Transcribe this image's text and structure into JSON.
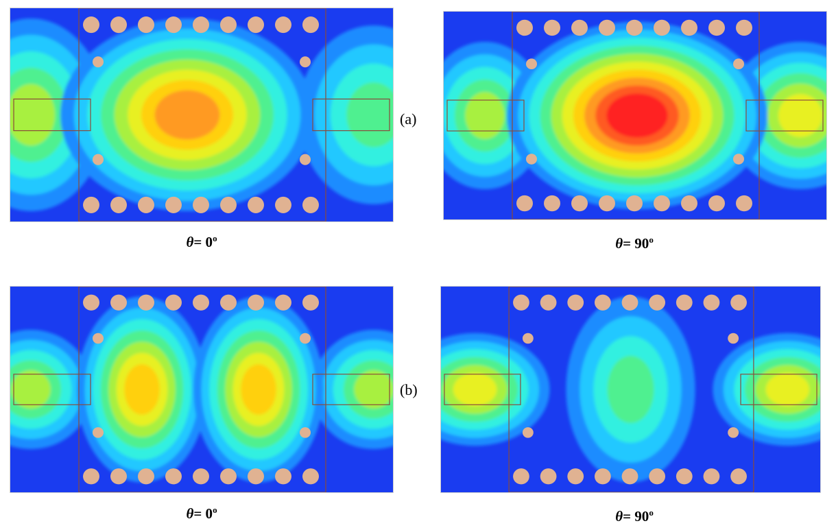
{
  "rows": [
    {
      "label": "(a)",
      "panels": [
        {
          "caption": {
            "symbol": "θ",
            "text": "= 0",
            "degree": "o"
          }
        },
        {
          "caption": {
            "symbol": "θ",
            "text": "= 90",
            "degree": "o"
          }
        }
      ]
    },
    {
      "label": "(b)",
      "panels": [
        {
          "caption": {
            "symbol": "θ",
            "text": "= 0",
            "degree": "o"
          }
        },
        {
          "caption": {
            "symbol": "θ",
            "text": "= 90",
            "degree": "o"
          }
        }
      ]
    }
  ]
}
